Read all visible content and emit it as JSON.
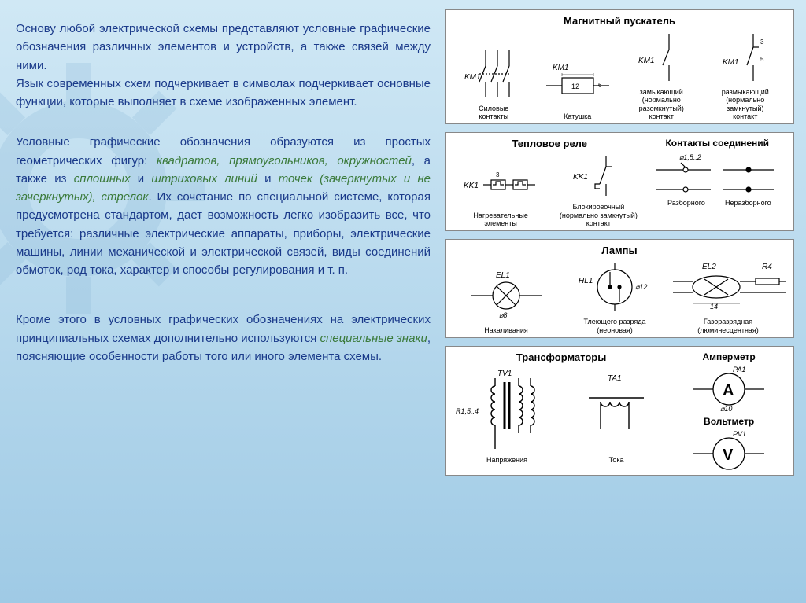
{
  "left": {
    "p1": "Основу любой электрической схемы представляют условные графические обозначения различных элементов и устройств, а также связей между ними.",
    "p1b": "Язык современных схем подчеркивает в символах подчеркивает основные функции, которые выполняет в схеме изображенных элемент.",
    "p2_a": "Условные графические обозначения образуются из простых геометрических фигур: ",
    "p2_i1": "квадратов, прямоугольников, окружностей",
    "p2_b": ", а также из ",
    "p2_i2": "сплошных",
    "p2_c": " и ",
    "p2_i3": "штриховых линий",
    "p2_d": " и ",
    "p2_i4": "точек (зачеркнутых и не зачеркнутых), стрелок",
    "p2_e": ". Их сочетание по специальной системе, которая предусмотрена стандартом, дает возможность легко изобразить все, что требуется: различные электрические аппараты, приборы, электрические машины, линии механической и электрической связей, виды соединений обмоток, род тока, характер и способы регулирования и т. п.",
    "p3_a": "Кроме этого в условных графических обозначениях на электрических принципиальных схемах дополнительно используются ",
    "p3_i": "специальные знаки",
    "p3_b": ", поясняющие особенности работы того или иного элемента схемы."
  },
  "panels": {
    "starter": {
      "title": "Магнитный пускатель",
      "c1": {
        "ref": "KM1",
        "label": "Силовые\nконтакты"
      },
      "c2": {
        "ref": "KM1",
        "dim": "12",
        "dim2": "6",
        "label": "Катушка"
      },
      "c3": {
        "ref": "KM1",
        "label": "замыкающий\n(нормально\nразомкнутый)\nконтакт"
      },
      "c4": {
        "ref": "KM1",
        "dim": "3",
        "dim2": "5",
        "label": "размыкающий\n(нормально\nзамкнутый)\nконтакт"
      }
    },
    "relay": {
      "title": "Тепловое реле",
      "c1": {
        "ref": "KK1",
        "dim": "3",
        "label": "Нагревательные\nэлементы"
      },
      "c2": {
        "ref": "KK1",
        "label": "Блокировочный\n(нормально замкнутый)\nконтакт"
      },
      "contacts_title": "Контакты соединений",
      "contacts_dim": "⌀1,5..2",
      "cA": "Разборного",
      "cB": "Неразборного"
    },
    "lamps": {
      "title": "Лампы",
      "c1": {
        "ref": "EL1",
        "dim": "⌀8",
        "label": "Накаливания"
      },
      "c2": {
        "ref": "HL1",
        "dim": "⌀12",
        "label": "Тлеющего разряда\n(неоновая)"
      },
      "c3": {
        "ref": "EL2",
        "ref2": "R4",
        "dim": "14",
        "label": "Газоразрядная\n(люминесцентная)"
      }
    },
    "trans": {
      "title": "Трансформаторы",
      "c1": {
        "ref": "TV1",
        "dim": "R1,5..4",
        "label": "Напряжения"
      },
      "c2": {
        "ref": "TA1",
        "label": "Тока"
      },
      "amp_title": "Амперметр",
      "amp_ref": "PA1",
      "amp_dim": "⌀10",
      "volt_title": "Вольтметр",
      "volt_ref": "PV1"
    }
  },
  "colors": {
    "blue": "#1a3a8a",
    "green": "#3a7a3a",
    "stroke": "#000000",
    "panel_bg": "#ffffff"
  }
}
